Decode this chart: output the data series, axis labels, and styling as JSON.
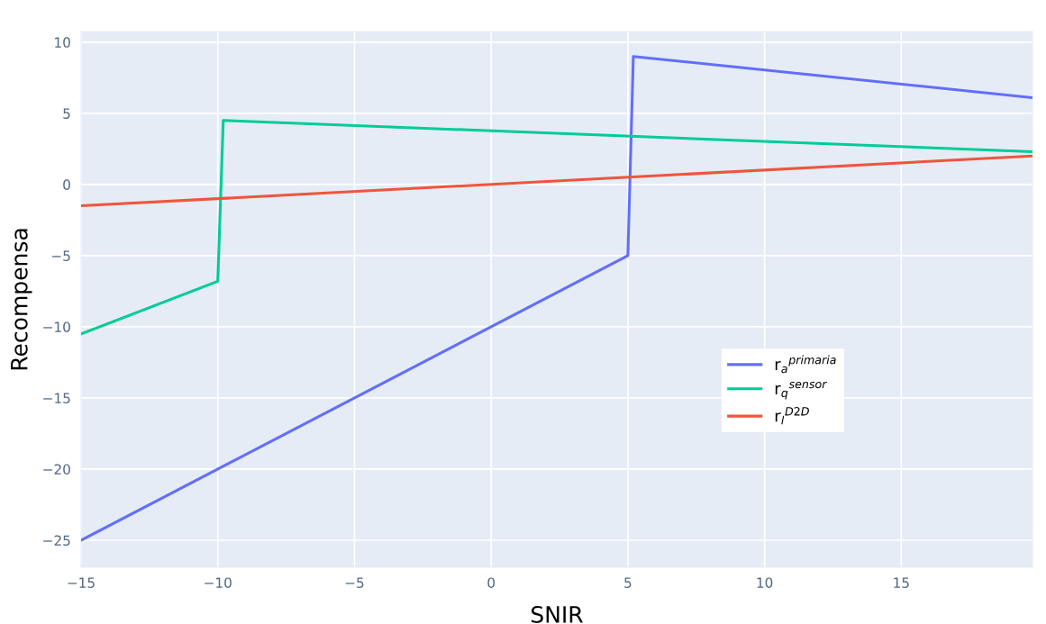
{
  "chart_data": {
    "type": "line",
    "xlabel": "SNIR",
    "ylabel": "Recompensa",
    "series": [
      {
        "name": "r$_{a}$$^{primaria}$",
        "color": "#636efa",
        "x": [
          -15,
          5,
          5.2,
          19.8
        ],
        "values": [
          -25,
          -5,
          9,
          6.1
        ]
      },
      {
        "name": "r$_{q}$$^{sensor}$",
        "color": "#00cc96",
        "x": [
          -15,
          -10,
          -9.8,
          19.8
        ],
        "values": [
          -10.5,
          -6.8,
          4.5,
          2.3
        ]
      },
      {
        "name": "r$_{l}$$^{D2D}$",
        "color": "#ef553b",
        "x": [
          -15,
          19.8
        ],
        "values": [
          -1.5,
          2.0
        ]
      }
    ],
    "xlim": [
      -15,
      19.8
    ],
    "ylim": [
      -26.9,
      10.75
    ],
    "xticks": [
      {
        "value": -15,
        "label": "−15"
      },
      {
        "value": -10,
        "label": "−10"
      },
      {
        "value": -5,
        "label": "−5"
      },
      0,
      5,
      10,
      15
    ],
    "yticks": [
      {
        "value": -25,
        "label": "−25"
      },
      {
        "value": -20,
        "label": "−20"
      },
      {
        "value": -15,
        "label": "−15"
      },
      {
        "value": -10,
        "label": "−10"
      },
      {
        "value": -5,
        "label": "−5"
      },
      0,
      5,
      10
    ],
    "grid": true,
    "legend": "center right",
    "line_style": "solid"
  }
}
